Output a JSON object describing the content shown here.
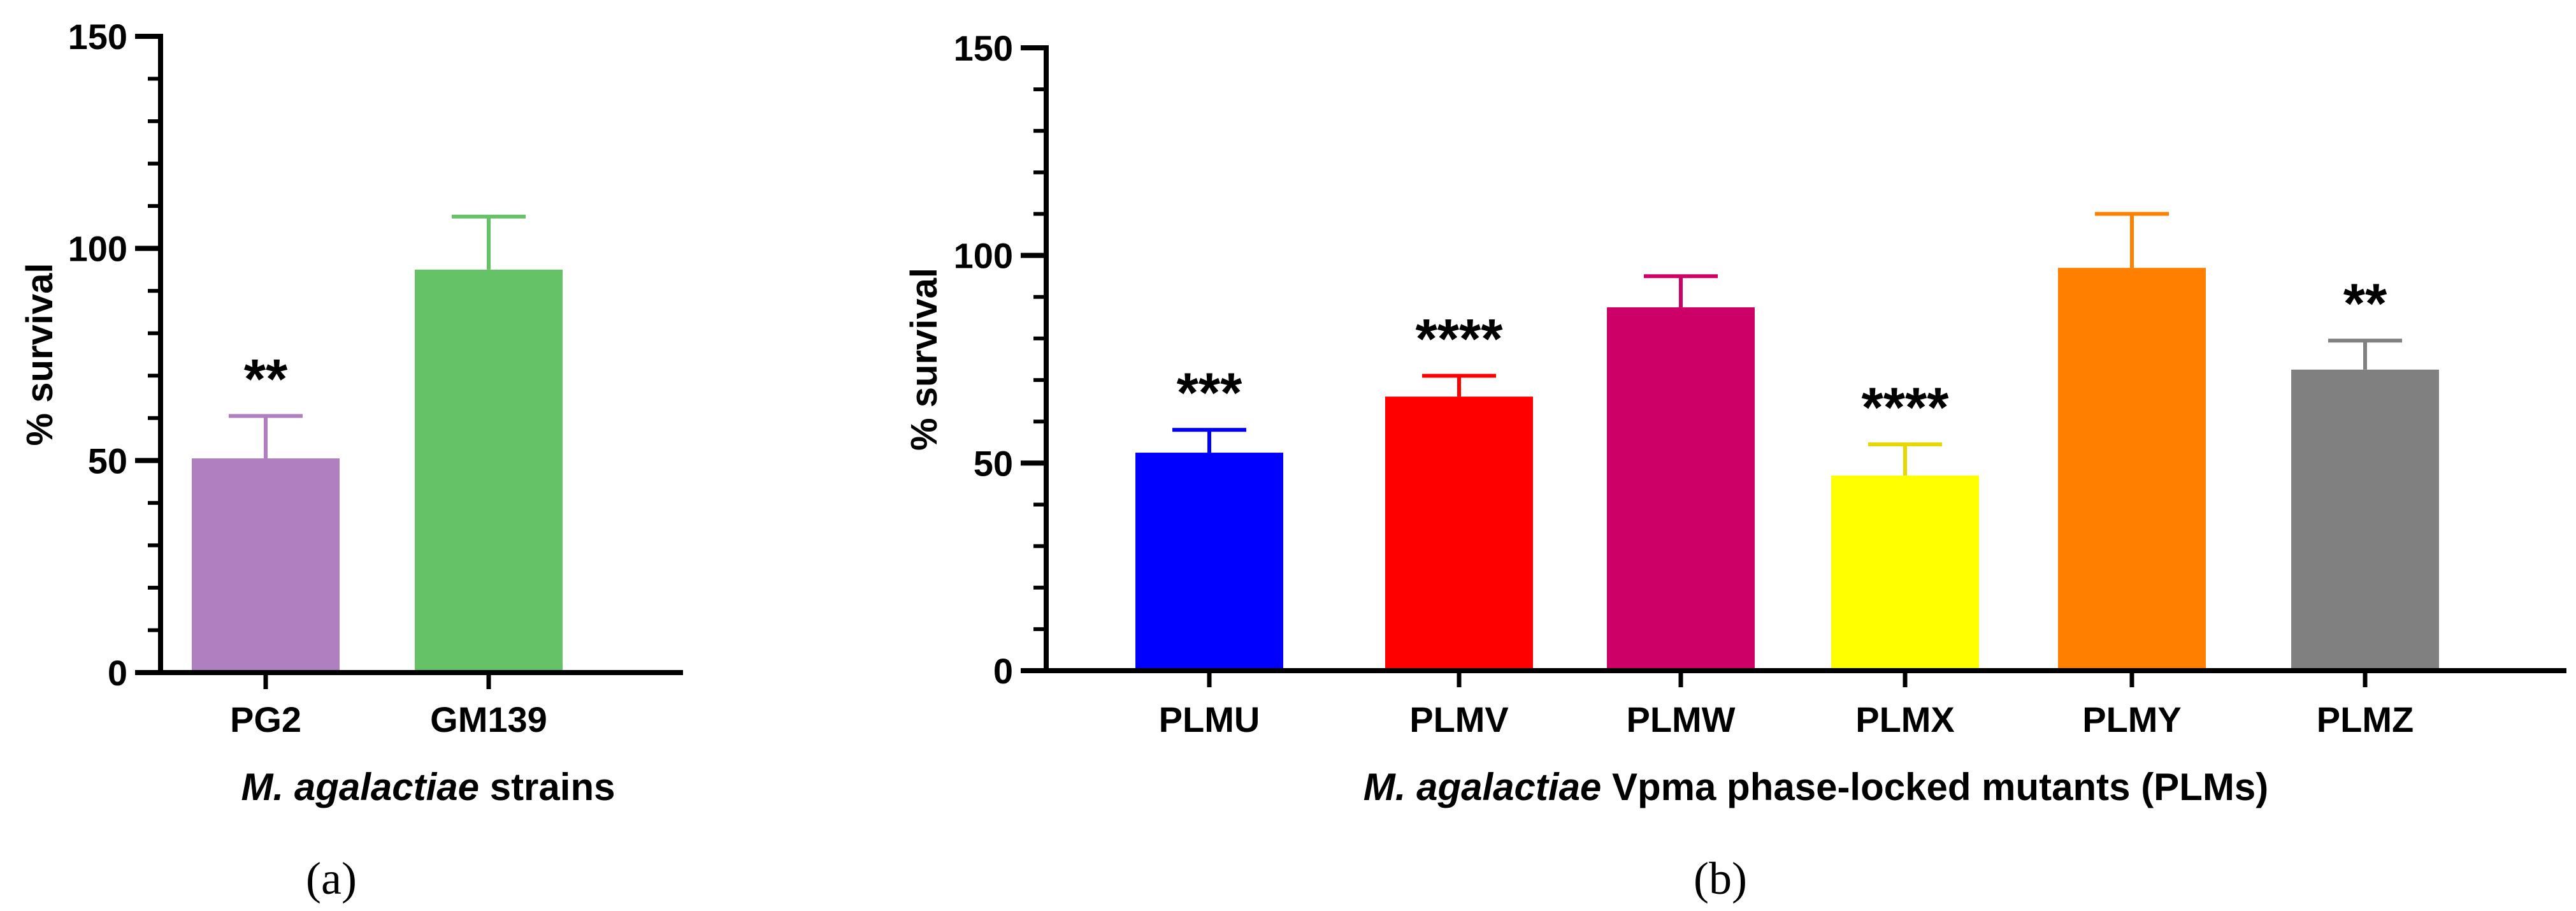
{
  "figure": {
    "panel_a_label": "(a)",
    "panel_b_label": "(b)"
  },
  "chart_data": [
    {
      "type": "bar",
      "panel": "a",
      "title": "",
      "xlabel_italic": "M. agalactiae",
      "xlabel_rest": " strains",
      "ylabel": "% survival",
      "ylim": [
        0,
        150
      ],
      "yticks": [
        0,
        50,
        100,
        150
      ],
      "minor_tick_step": 10,
      "grid": false,
      "categories": [
        "PG2",
        "GM139"
      ],
      "values": [
        50.5,
        95
      ],
      "errors": [
        10,
        12.5
      ],
      "significance": [
        "**",
        ""
      ],
      "colors": [
        "#B07FC0",
        "#66C266"
      ]
    },
    {
      "type": "bar",
      "panel": "b",
      "title": "",
      "xlabel_italic": "M. agalactiae",
      "xlabel_rest": " Vpma phase-locked mutants (PLMs)",
      "ylabel": "% survival",
      "ylim": [
        0,
        150
      ],
      "yticks": [
        0,
        50,
        100,
        150
      ],
      "minor_tick_step": 10,
      "grid": false,
      "categories": [
        "PLMU",
        "PLMV",
        "PLMW",
        "PLMX",
        "PLMY",
        "PLMZ"
      ],
      "values": [
        52.5,
        66,
        87.5,
        47,
        97,
        72.5
      ],
      "errors": [
        5.5,
        5,
        7.5,
        7.5,
        13,
        7
      ],
      "significance": [
        "***",
        "****",
        "",
        "****",
        "",
        "**"
      ],
      "colors": [
        "#0000FF",
        "#FF0000",
        "#CC0066",
        "#FFFF00",
        "#FF8000",
        "#808080"
      ]
    }
  ]
}
